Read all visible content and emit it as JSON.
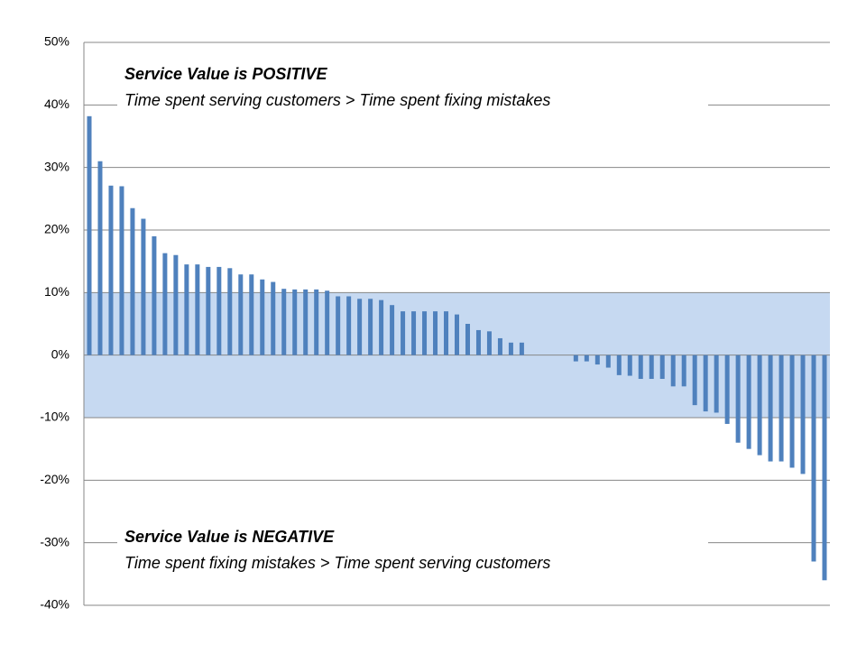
{
  "chart_data": {
    "type": "bar",
    "annotations": [
      {
        "title": "Service Value is POSITIVE",
        "text": "Time spent serving customers > Time spent fixing mistakes"
      },
      {
        "title": "Service Value is NEGATIVE",
        "text": "Time spent fixing mistakes > Time spent serving customers"
      }
    ],
    "values": [
      38.2,
      31,
      27.1,
      27,
      23.5,
      21.8,
      19,
      16.3,
      16,
      14.5,
      14.5,
      14.1,
      14.1,
      13.9,
      12.9,
      12.9,
      12.1,
      11.7,
      10.6,
      10.5,
      10.5,
      10.5,
      10.3,
      9.4,
      9.4,
      9,
      9,
      8.8,
      8,
      7,
      7,
      7,
      7,
      7,
      6.5,
      5,
      4,
      3.8,
      2.7,
      2,
      2,
      0,
      0,
      0,
      0,
      -1,
      -1,
      -1.5,
      -2,
      -3.2,
      -3.3,
      -3.8,
      -3.8,
      -3.8,
      -5,
      -5,
      -8,
      -9,
      -9.2,
      -11,
      -14,
      -15,
      -16,
      -17,
      -17,
      -18,
      -19,
      -33,
      -36
    ],
    "color": "#4f81bd",
    "shaded_range": [
      -10,
      10
    ],
    "shaded_color": "#c6d9f1",
    "ylim": [
      -40,
      50
    ],
    "yticks": [
      {
        "value": -40,
        "label": "-40%"
      },
      {
        "value": -30,
        "label": "-30%"
      },
      {
        "value": -20,
        "label": "-20%"
      },
      {
        "value": -10,
        "label": "-10%"
      },
      {
        "value": 0,
        "label": "0%"
      },
      {
        "value": 10,
        "label": "10%"
      },
      {
        "value": 20,
        "label": "20%"
      },
      {
        "value": 30,
        "label": "30%"
      },
      {
        "value": 40,
        "label": "40%"
      },
      {
        "value": 50,
        "label": "50%"
      }
    ],
    "grid": true
  }
}
